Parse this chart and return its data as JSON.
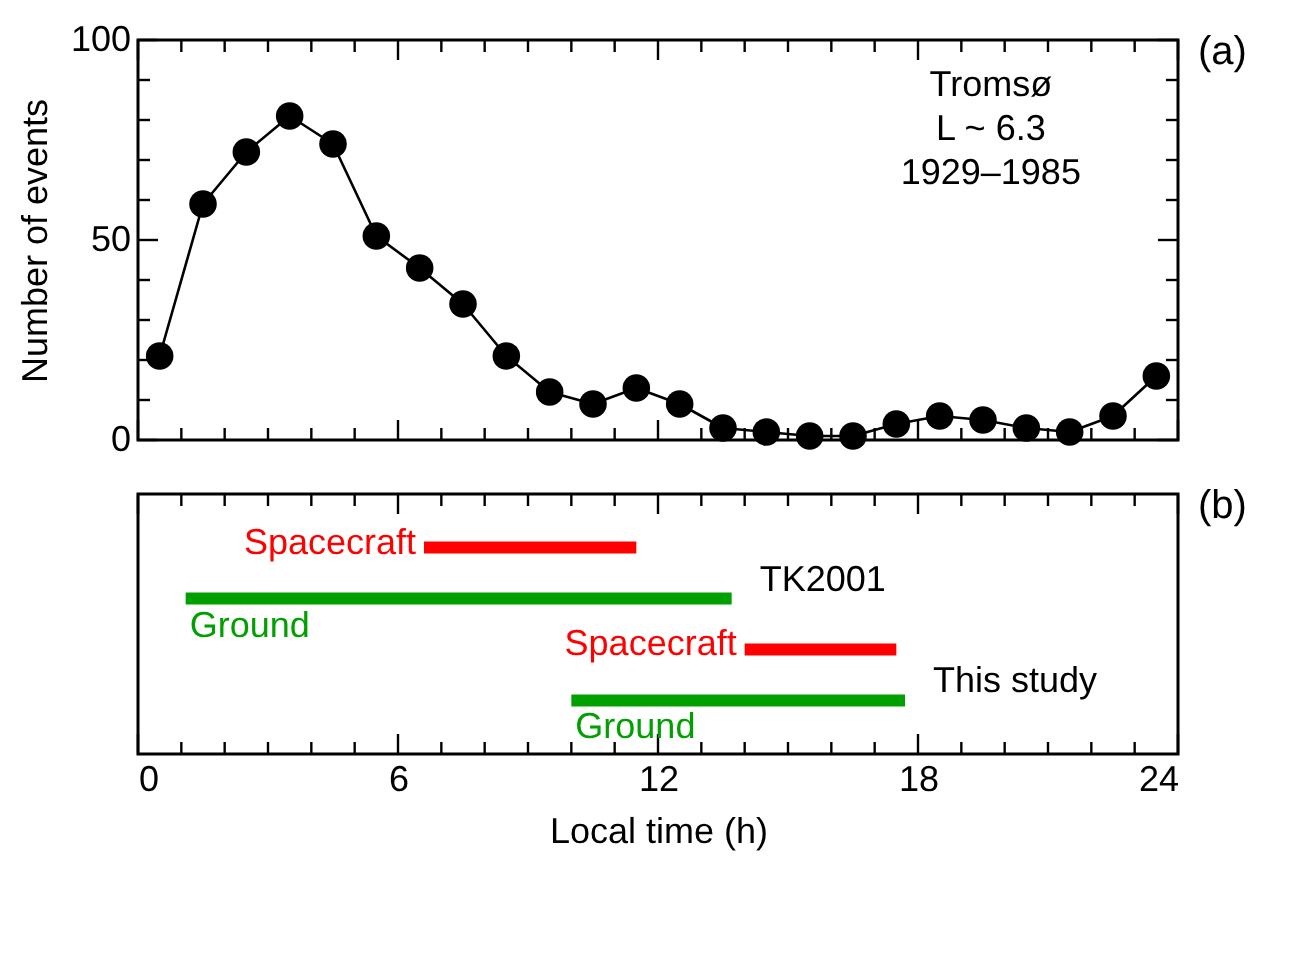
{
  "chart_data": [
    {
      "type": "line",
      "marker": "circle",
      "line_style": "solid",
      "ylabel": "Number of events",
      "tick_labels": "y",
      "x": [
        0.5,
        1.5,
        2.5,
        3.5,
        4.5,
        5.5,
        6.5,
        7.5,
        8.5,
        9.5,
        10.5,
        11.5,
        12.5,
        13.5,
        14.5,
        15.5,
        16.5,
        17.5,
        18.5,
        19.5,
        20.5,
        21.5,
        22.5,
        23.5
      ],
      "series": [
        {
          "color": "#000000",
          "values": [
            21,
            59,
            72,
            81,
            74,
            51,
            43,
            34,
            21,
            12,
            9,
            13,
            9,
            3,
            2,
            1,
            1,
            4,
            6,
            5,
            3,
            2,
            6,
            16
          ]
        }
      ],
      "xlim": [
        0,
        24
      ],
      "xticks": [
        0,
        {
          "value": 1,
          "label": null
        },
        {
          "value": 2,
          "label": null
        },
        {
          "value": 3,
          "label": null
        },
        {
          "value": 4,
          "label": null
        },
        {
          "value": 5,
          "label": null
        },
        6,
        {
          "value": 7,
          "label": null
        },
        {
          "value": 8,
          "label": null
        },
        {
          "value": 9,
          "label": null
        },
        {
          "value": 10,
          "label": null
        },
        {
          "value": 11,
          "label": null
        },
        12,
        {
          "value": 13,
          "label": null
        },
        {
          "value": 14,
          "label": null
        },
        {
          "value": 15,
          "label": null
        },
        {
          "value": 16,
          "label": null
        },
        {
          "value": 17,
          "label": null
        },
        18,
        {
          "value": 19,
          "label": null
        },
        {
          "value": 20,
          "label": null
        },
        {
          "value": 21,
          "label": null
        },
        {
          "value": 22,
          "label": null
        },
        {
          "value": 23,
          "label": null
        },
        24
      ],
      "ylim": [
        0,
        100
      ],
      "yticks": [
        0,
        {
          "value": 10,
          "label": null
        },
        {
          "value": 20,
          "label": null
        },
        {
          "value": 30,
          "label": null
        },
        {
          "value": 40,
          "label": null
        },
        50,
        {
          "value": 60,
          "label": null
        },
        {
          "value": 70,
          "label": null
        },
        {
          "value": 80,
          "label": null
        },
        {
          "value": 90,
          "label": null
        },
        100
      ],
      "annotations": [
        "(a)",
        "Tromsø",
        "L ~ 6.3",
        "1929–1985"
      ]
    },
    {
      "type": "bar",
      "orientation": "horizontal",
      "xlabel": "Local time (h)",
      "tick_labels": "x",
      "categories": [
        null,
        null,
        null,
        null
      ],
      "value_labels": [
        "Spacecraft",
        "Ground",
        "Spacecraft",
        "Ground"
      ],
      "base": [
        6.6,
        1.1,
        14.0,
        10.0
      ],
      "values": [
        4.9,
        12.6,
        3.5,
        7.7
      ],
      "colors": [
        "#ff0000",
        "#00a000",
        "#ff0000",
        "#00a000"
      ],
      "xlim": [
        0,
        24
      ],
      "xticks": [
        0,
        {
          "value": 1,
          "label": null
        },
        {
          "value": 2,
          "label": null
        },
        {
          "value": 3,
          "label": null
        },
        {
          "value": 4,
          "label": null
        },
        {
          "value": 5,
          "label": null
        },
        6,
        {
          "value": 7,
          "label": null
        },
        {
          "value": 8,
          "label": null
        },
        {
          "value": 9,
          "label": null
        },
        {
          "value": 10,
          "label": null
        },
        {
          "value": 11,
          "label": null
        },
        12,
        {
          "value": 13,
          "label": null
        },
        {
          "value": 14,
          "label": null
        },
        {
          "value": 15,
          "label": null
        },
        {
          "value": 16,
          "label": null
        },
        {
          "value": 17,
          "label": null
        },
        18,
        {
          "value": 19,
          "label": null
        },
        {
          "value": 20,
          "label": null
        },
        {
          "value": 21,
          "label": null
        },
        {
          "value": 22,
          "label": null
        },
        {
          "value": 23,
          "label": null
        },
        24
      ],
      "annotations": [
        "(b)",
        "TK2001",
        "This study"
      ]
    }
  ]
}
